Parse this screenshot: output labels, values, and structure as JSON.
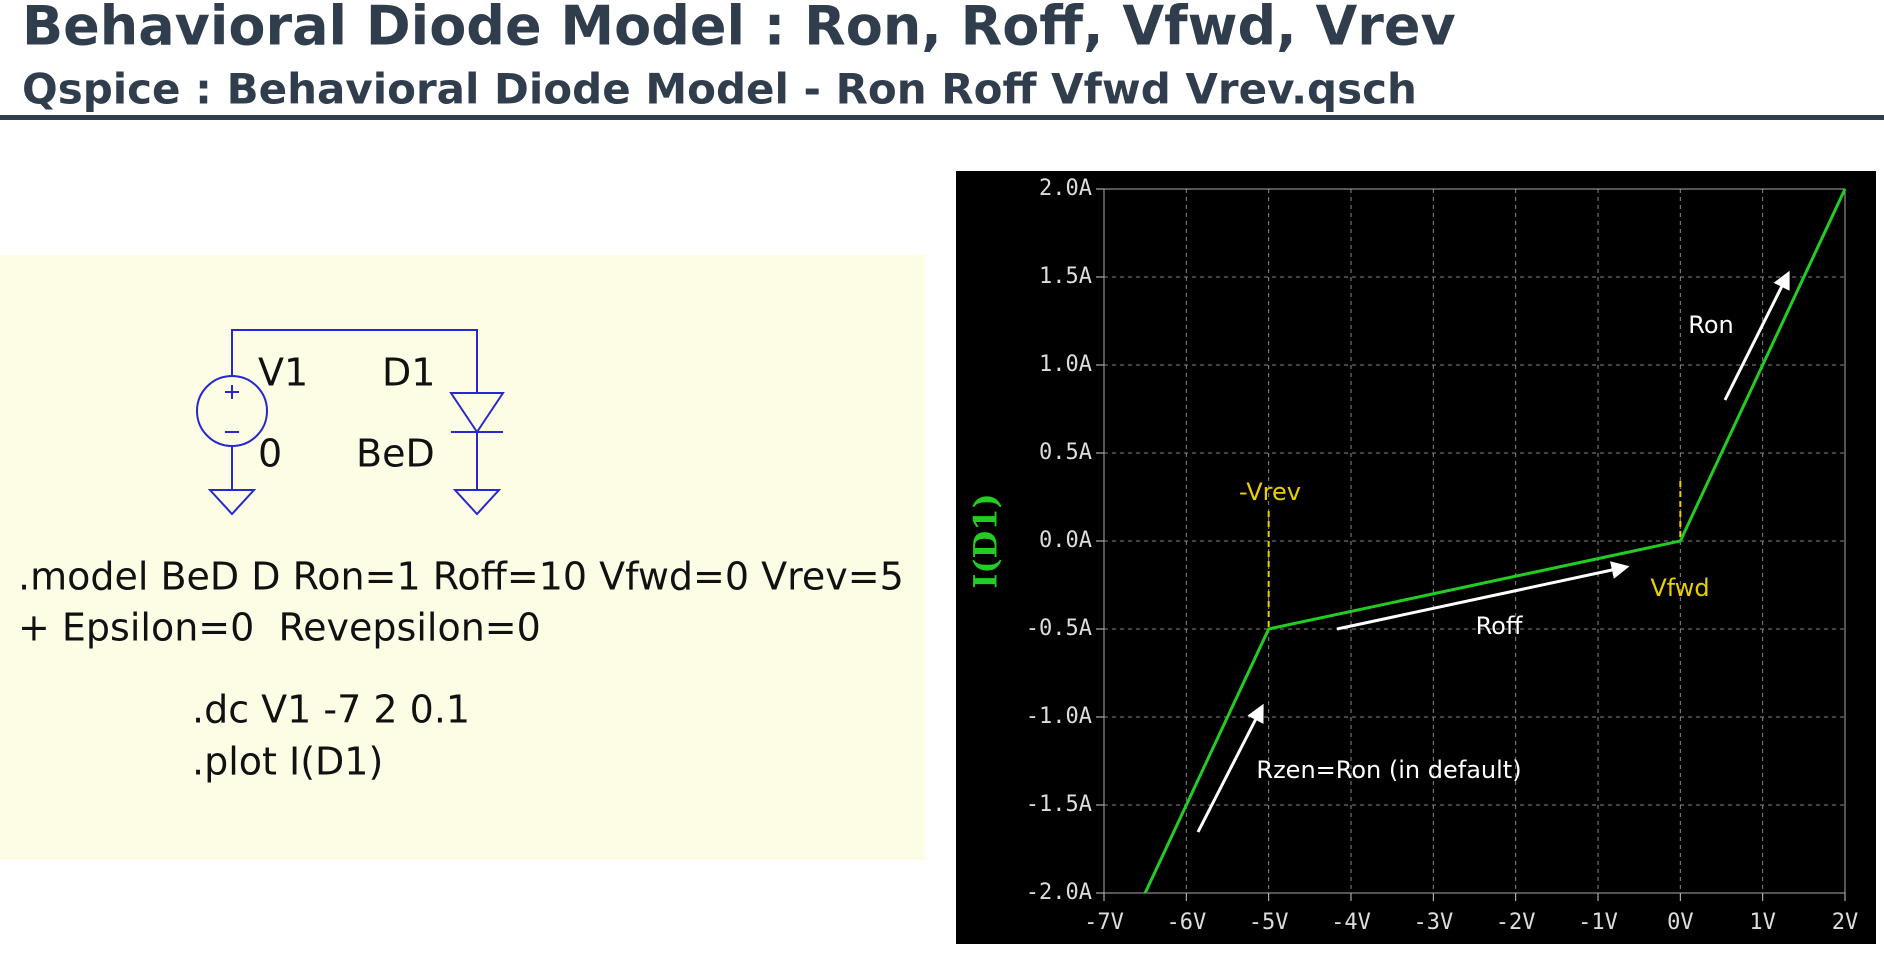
{
  "header": {
    "title": "Behavioral Diode Model : Ron, Roff, Vfwd, Vrev",
    "subtitle": "Qspice : Behavioral Diode Model - Ron Roff Vfwd Vrev.qsch"
  },
  "schematic": {
    "source_name": "V1",
    "source_value": "0",
    "diode_name": "D1",
    "diode_model": "BeD",
    "model_lines": [
      ".model BeD D Ron=1 Roff=10 Vfwd=0 Vrev=5",
      "+ Epsilon=0  Revepsilon=0"
    ],
    "directives": [
      ".dc V1 -7 2 0.1",
      ".plot I(D1)"
    ]
  },
  "chart_data": {
    "type": "line",
    "y_label": "I(D1)",
    "color": "#22cc22",
    "x": [
      -6.5,
      -5,
      0,
      2
    ],
    "values": [
      -2.0,
      -0.5,
      0,
      2.0
    ],
    "xlim": [
      -7,
      2
    ],
    "ylim": [
      -2.0,
      2.0
    ],
    "xticks": [
      {
        "value": -7,
        "label": "-7V"
      },
      {
        "value": -6,
        "label": "-6V"
      },
      {
        "value": -5,
        "label": "-5V"
      },
      {
        "value": -4,
        "label": "-4V"
      },
      {
        "value": -3,
        "label": "-3V"
      },
      {
        "value": -2,
        "label": "-2V"
      },
      {
        "value": -1,
        "label": "-1V"
      },
      {
        "value": 0,
        "label": "0V"
      },
      {
        "value": 1,
        "label": "1V"
      },
      {
        "value": 2,
        "label": "2V"
      }
    ],
    "yticks": [
      {
        "value": -2.0,
        "label": "-2.0A"
      },
      {
        "value": -1.5,
        "label": "-1.5A"
      },
      {
        "value": -1.0,
        "label": "-1.0A"
      },
      {
        "value": -0.5,
        "label": "-0.5A"
      },
      {
        "value": 0,
        "label": "0.0A"
      },
      {
        "value": 0.5,
        "label": "0.5A"
      },
      {
        "value": 1.0,
        "label": "1.0A"
      },
      {
        "value": 1.5,
        "label": "1.5A"
      },
      {
        "value": 2.0,
        "label": "2.0A"
      }
    ],
    "grid": true,
    "annotations": [
      "-Vrev",
      "Vfwd",
      "Ron",
      "Roff",
      "Rzen=Ron (in default)"
    ]
  }
}
